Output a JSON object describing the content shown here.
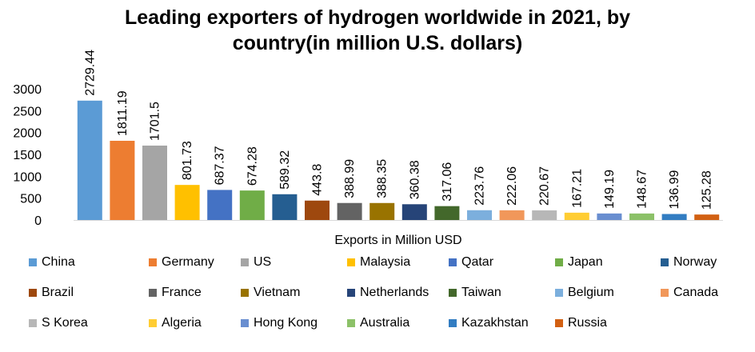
{
  "chart_data": {
    "type": "bar",
    "title_line1": "Leading exporters of hydrogen worldwide in 2021, by",
    "title_line2": "country(in million U.S. dollars)",
    "xlabel": "Exports in Million USD",
    "ylabel": "",
    "ylim": [
      0,
      3000
    ],
    "yticks": [
      "0",
      "500",
      "1000",
      "1500",
      "2000",
      "2500",
      "3000"
    ],
    "grid": false,
    "legend_position": "bottom",
    "series": [
      {
        "name": "China",
        "value": 2729.44,
        "label": "2729.44",
        "color": "#5b9bd5"
      },
      {
        "name": "Germany",
        "value": 1811.19,
        "label": "1811.19",
        "color": "#ed7d31"
      },
      {
        "name": "US",
        "value": 1701.5,
        "label": "1701.5",
        "color": "#a5a5a5"
      },
      {
        "name": "Malaysia",
        "value": 801.73,
        "label": "801.73",
        "color": "#ffc000"
      },
      {
        "name": "Qatar",
        "value": 687.37,
        "label": "687.37",
        "color": "#4472c4"
      },
      {
        "name": "Japan",
        "value": 674.28,
        "label": "674.28",
        "color": "#70ad47"
      },
      {
        "name": "Norway",
        "value": 589.32,
        "label": "589.32",
        "color": "#255e91"
      },
      {
        "name": "Brazil",
        "value": 443.8,
        "label": "443.8",
        "color": "#9e480e"
      },
      {
        "name": "France",
        "value": 388.99,
        "label": "388.99",
        "color": "#636363"
      },
      {
        "name": "Vietnam",
        "value": 388.35,
        "label": "388.35",
        "color": "#997300"
      },
      {
        "name": "Netherlands",
        "value": 360.38,
        "label": "360.38",
        "color": "#264478"
      },
      {
        "name": "Taiwan",
        "value": 317.06,
        "label": "317.06",
        "color": "#43682b"
      },
      {
        "name": "Belgium",
        "value": 223.76,
        "label": "223.76",
        "color": "#7cafdd"
      },
      {
        "name": "Canada",
        "value": 222.06,
        "label": "222.06",
        "color": "#f1975a"
      },
      {
        "name": "S Korea",
        "value": 220.67,
        "label": "220.67",
        "color": "#b7b7b7"
      },
      {
        "name": "Algeria",
        "value": 167.21,
        "label": "167.21",
        "color": "#ffcd33"
      },
      {
        "name": "Hong Kong",
        "value": 149.19,
        "label": "149.19",
        "color": "#698ed0"
      },
      {
        "name": "Australia",
        "value": 148.67,
        "label": "148.67",
        "color": "#8cc168"
      },
      {
        "name": "Kazakhstan",
        "value": 136.99,
        "label": "136.99",
        "color": "#327dc2"
      },
      {
        "name": "Russia",
        "value": 125.28,
        "label": "125.28",
        "color": "#d26012"
      }
    ]
  }
}
